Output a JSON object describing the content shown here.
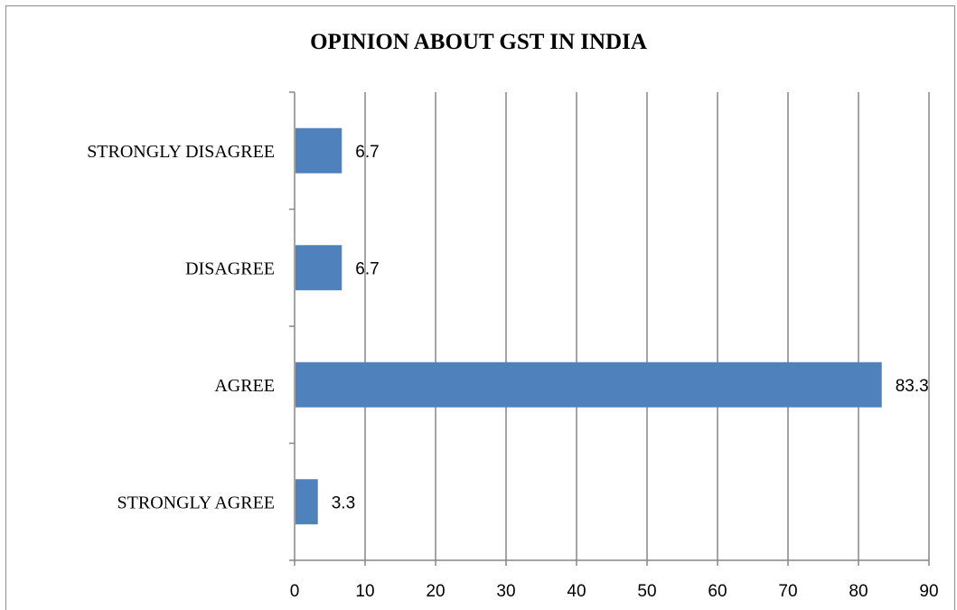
{
  "chart_data": {
    "type": "bar",
    "orientation": "horizontal",
    "title": "OPINION ABOUT GST IN INDIA",
    "categories": [
      "STRONGLY AGREE",
      "AGREE",
      "DISAGREE",
      "STRONGLY DISAGREE"
    ],
    "values": [
      3.3,
      83.3,
      6.7,
      6.7
    ],
    "data_labels": [
      "3.3",
      "83.3",
      "6.7",
      "6.7"
    ],
    "xlim": [
      0,
      90
    ],
    "xticks": [
      0,
      10,
      20,
      30,
      40,
      50,
      60,
      70,
      80,
      90
    ],
    "grid": "vertical",
    "legend": "none",
    "bar_color": "#4f81bd",
    "grid_color": "#868686"
  }
}
